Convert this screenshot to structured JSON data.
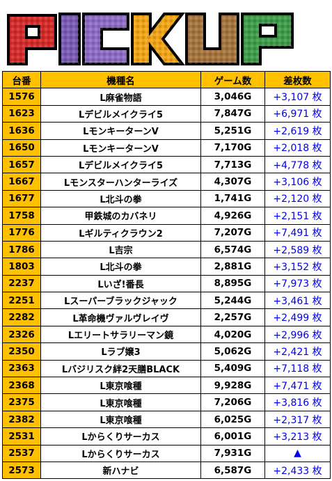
{
  "banner": {
    "title": "PICKUP"
  },
  "table": {
    "headers": [
      "台番",
      "機種名",
      "ゲーム数",
      "差枚数"
    ],
    "rows": [
      {
        "no": "1576",
        "name": "L麻雀物語",
        "games": "3,046G",
        "diff": "+3,107 枚"
      },
      {
        "no": "1623",
        "name": "Lデビルメイクライ5",
        "games": "7,847G",
        "diff": "+6,971 枚"
      },
      {
        "no": "1636",
        "name": "LモンキーターンV",
        "games": "5,251G",
        "diff": "+2,619 枚"
      },
      {
        "no": "1650",
        "name": "LモンキーターンV",
        "games": "7,170G",
        "diff": "+2,018 枚"
      },
      {
        "no": "1657",
        "name": "Lデビルメイクライ5",
        "games": "7,713G",
        "diff": "+4,778 枚"
      },
      {
        "no": "1667",
        "name": "Lモンスターハンターライズ",
        "games": "4,307G",
        "diff": "+3,106 枚"
      },
      {
        "no": "1677",
        "name": "L北斗の拳",
        "games": "1,741G",
        "diff": "+2,120 枚"
      },
      {
        "no": "1758",
        "name": "甲鉄城のカバネリ",
        "games": "4,926G",
        "diff": "+2,151 枚"
      },
      {
        "no": "1776",
        "name": "Lギルティクラウン2",
        "games": "7,207G",
        "diff": "+7,491 枚"
      },
      {
        "no": "1786",
        "name": "L吉宗",
        "games": "6,574G",
        "diff": "+2,589 枚"
      },
      {
        "no": "1803",
        "name": "L北斗の拳",
        "games": "2,881G",
        "diff": "+3,152 枚"
      },
      {
        "no": "2237",
        "name": "Lいざ!番長",
        "games": "8,895G",
        "diff": "+7,973 枚"
      },
      {
        "no": "2251",
        "name": "Lスーパーブラックジャック",
        "games": "5,244G",
        "diff": "+3,461 枚"
      },
      {
        "no": "2282",
        "name": "L革命機ヴァルヴレイヴ",
        "games": "2,257G",
        "diff": "+2,499 枚"
      },
      {
        "no": "2326",
        "name": "Lエリートサラリーマン鏡",
        "games": "4,020G",
        "diff": "+2,996 枚"
      },
      {
        "no": "2350",
        "name": "Lラブ嬢3",
        "games": "5,062G",
        "diff": "+2,421 枚"
      },
      {
        "no": "2363",
        "name": "Lバジリスク絆2天膳BLACK",
        "games": "5,409G",
        "diff": "+7,118 枚"
      },
      {
        "no": "2368",
        "name": "L東京喰種",
        "games": "9,928G",
        "diff": "+7,471 枚"
      },
      {
        "no": "2375",
        "name": "L東京喰種",
        "games": "7,206G",
        "diff": "+3,816 枚"
      },
      {
        "no": "2382",
        "name": "L東京喰種",
        "games": "6,025G",
        "diff": "+2,317 枚"
      },
      {
        "no": "2531",
        "name": "Lからくりサーカス",
        "games": "6,001G",
        "diff": "+3,213 枚"
      },
      {
        "no": "2537",
        "name": "Lからくりサーカス",
        "games": "7,931G",
        "diff": "▲"
      },
      {
        "no": "2573",
        "name": "新ハナビ",
        "games": "6,587G",
        "diff": "+2,433 枚"
      }
    ]
  }
}
